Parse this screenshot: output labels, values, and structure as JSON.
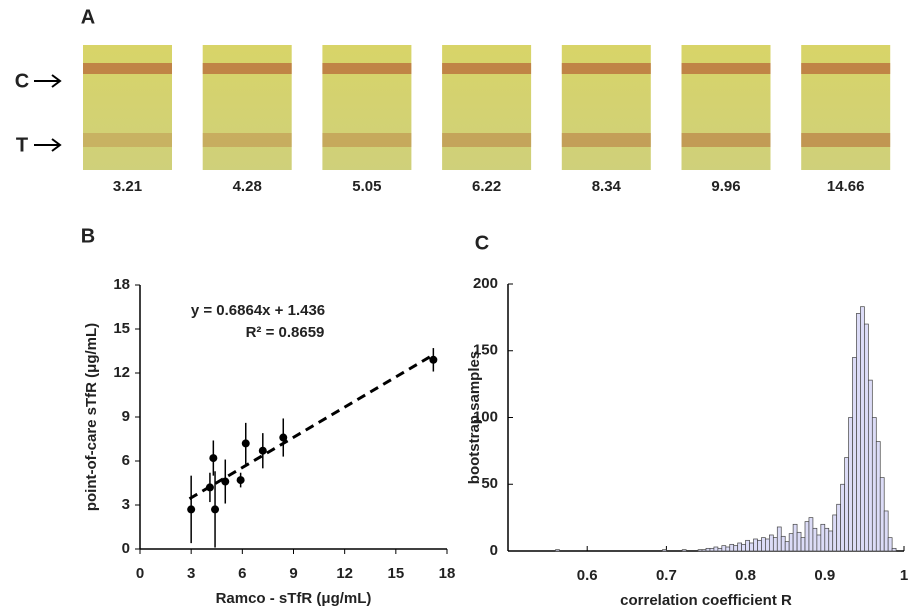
{
  "panel_a": {
    "label": "A",
    "c_label": "C",
    "t_label": "T",
    "strips": [
      "3.21",
      "4.28",
      "5.05",
      "6.22",
      "8.34",
      "9.96",
      "14.66"
    ]
  },
  "chart_data": [
    {
      "type": "scatter",
      "panel_label": "B",
      "xlabel": "Ramco - sTfR (μg/mL)",
      "ylabel": "point-of-care  sTfR (μg/mL)",
      "annotations": [
        "y = 0.6864x + 1.436",
        "R² = 0.8659"
      ],
      "x": [
        3.0,
        4.1,
        4.3,
        4.4,
        5.0,
        5.9,
        6.2,
        7.2,
        8.4,
        17.2
      ],
      "values": [
        2.7,
        4.2,
        6.2,
        2.7,
        4.6,
        4.7,
        7.2,
        6.7,
        7.6,
        12.9
      ],
      "errors": [
        2.3,
        1.0,
        1.2,
        2.6,
        1.5,
        0.5,
        1.4,
        1.2,
        1.3,
        0.8
      ],
      "color": "#000000",
      "trendline": {
        "slope": 0.6864,
        "intercept": 1.436,
        "xlim": [
          2.9,
          17.2
        ]
      },
      "xlim": [
        0,
        18
      ],
      "ylim": [
        0,
        18
      ],
      "xticks": [
        0,
        3,
        6,
        9,
        12,
        15,
        18
      ],
      "yticks": [
        0,
        3,
        6,
        9,
        12,
        15,
        18
      ]
    },
    {
      "type": "histogram",
      "panel_label": "C",
      "xlabel": "correlation coefficient R",
      "ylabel": "bootstrap samples",
      "color": "#dcdcf7",
      "bins": [
        0.5,
        0.505,
        0.51,
        0.515,
        0.52,
        0.525,
        0.53,
        0.535,
        0.54,
        0.545,
        0.55,
        0.555,
        0.56,
        0.565,
        0.57,
        0.575,
        0.58,
        0.585,
        0.59,
        0.595,
        0.6,
        0.605,
        0.61,
        0.615,
        0.62,
        0.625,
        0.63,
        0.635,
        0.64,
        0.645,
        0.65,
        0.655,
        0.66,
        0.665,
        0.67,
        0.675,
        0.68,
        0.685,
        0.69,
        0.695,
        0.7,
        0.705,
        0.71,
        0.715,
        0.72,
        0.725,
        0.73,
        0.735,
        0.74,
        0.745,
        0.75,
        0.755,
        0.76,
        0.765,
        0.77,
        0.775,
        0.78,
        0.785,
        0.79,
        0.795,
        0.8,
        0.805,
        0.81,
        0.815,
        0.82,
        0.825,
        0.83,
        0.835,
        0.84,
        0.845,
        0.85,
        0.855,
        0.86,
        0.865,
        0.87,
        0.875,
        0.88,
        0.885,
        0.89,
        0.895,
        0.9,
        0.905,
        0.91,
        0.915,
        0.92,
        0.925,
        0.93,
        0.935,
        0.94,
        0.945,
        0.95,
        0.955,
        0.96,
        0.965,
        0.97,
        0.975,
        0.98,
        0.985,
        0.99,
        0.995,
        1.0
      ],
      "values": [
        0,
        0,
        0,
        0,
        0,
        0,
        0,
        0,
        0,
        0,
        0,
        0,
        1,
        0,
        0,
        0,
        0,
        0,
        0,
        0,
        0,
        0,
        0,
        0,
        0,
        0,
        0,
        0,
        0,
        0,
        0,
        0,
        0,
        0,
        0,
        0,
        0,
        0,
        0,
        1,
        0,
        0,
        0,
        0,
        1,
        0,
        0,
        0,
        1,
        1,
        2,
        2,
        3,
        2,
        4,
        3,
        5,
        4,
        6,
        5,
        8,
        6,
        9,
        8,
        10,
        9,
        12,
        10,
        18,
        11,
        7,
        13,
        20,
        14,
        10,
        22,
        25,
        17,
        12,
        20,
        17,
        15,
        27,
        35,
        50,
        70,
        100,
        145,
        178,
        183,
        170,
        128,
        100,
        82,
        55,
        30,
        10,
        2,
        0,
        0
      ],
      "xlim": [
        0.5,
        1.0
      ],
      "ylim": [
        0,
        200
      ],
      "xticks": [
        0.6,
        0.7,
        0.8,
        0.9,
        1
      ],
      "yticks": [
        0,
        50,
        100,
        150,
        200
      ]
    }
  ]
}
